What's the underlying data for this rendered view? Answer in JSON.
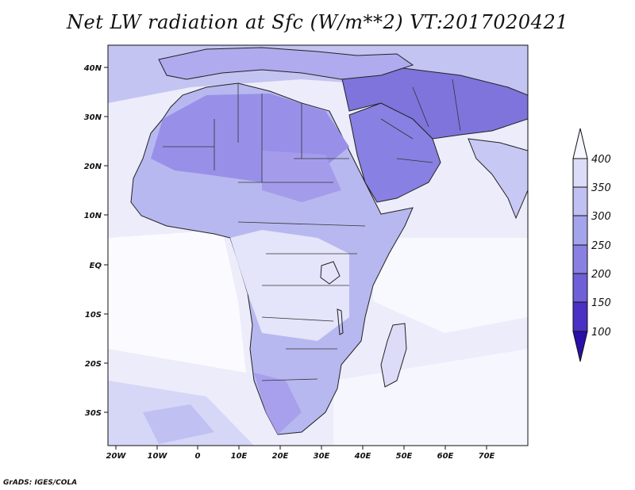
{
  "map": {
    "title": "Net LW radiation at Sfc (W/m**2) VT:2017020421",
    "credit": "GrADS: IGES/COLA",
    "lon_ticks": [
      "20W",
      "10W",
      "0",
      "10E",
      "20E",
      "30E",
      "40E",
      "50E",
      "60E",
      "70E"
    ],
    "lat_ticks": [
      "40N",
      "30N",
      "20N",
      "10N",
      "EQ",
      "10S",
      "20S",
      "30S"
    ],
    "extent": {
      "lon": [
        -23,
        80
      ],
      "lat": [
        -37,
        45
      ]
    }
  },
  "colorbar": {
    "levels": [
      "400",
      "350",
      "300",
      "250",
      "200",
      "150",
      "100"
    ],
    "colors": [
      "#f7f7ff",
      "#dcdcf8",
      "#c0c0f2",
      "#a4a4ec",
      "#8a80e2",
      "#6e60d6",
      "#4a30c4",
      "#2a10a8"
    ]
  }
}
